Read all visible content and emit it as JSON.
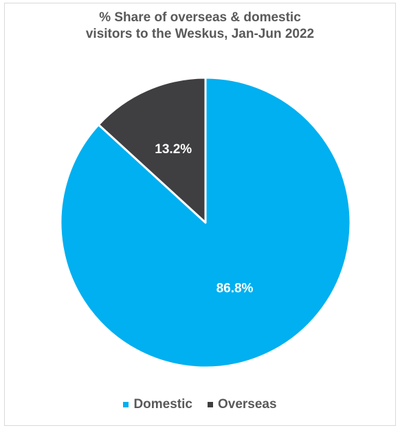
{
  "caption_fragment": "",
  "chart_data": {
    "type": "pie",
    "title_lines": [
      "% Share of overseas & domestic",
      "visitors to the Weskus, Jan-Jun 2022"
    ],
    "categories": [
      "Domestic",
      "Overseas"
    ],
    "values": [
      86.8,
      13.2
    ],
    "data_labels": [
      "86.8%",
      "13.2%"
    ],
    "colors": [
      "#00b0f0",
      "#3f3f41"
    ],
    "legend_position": "bottom"
  }
}
